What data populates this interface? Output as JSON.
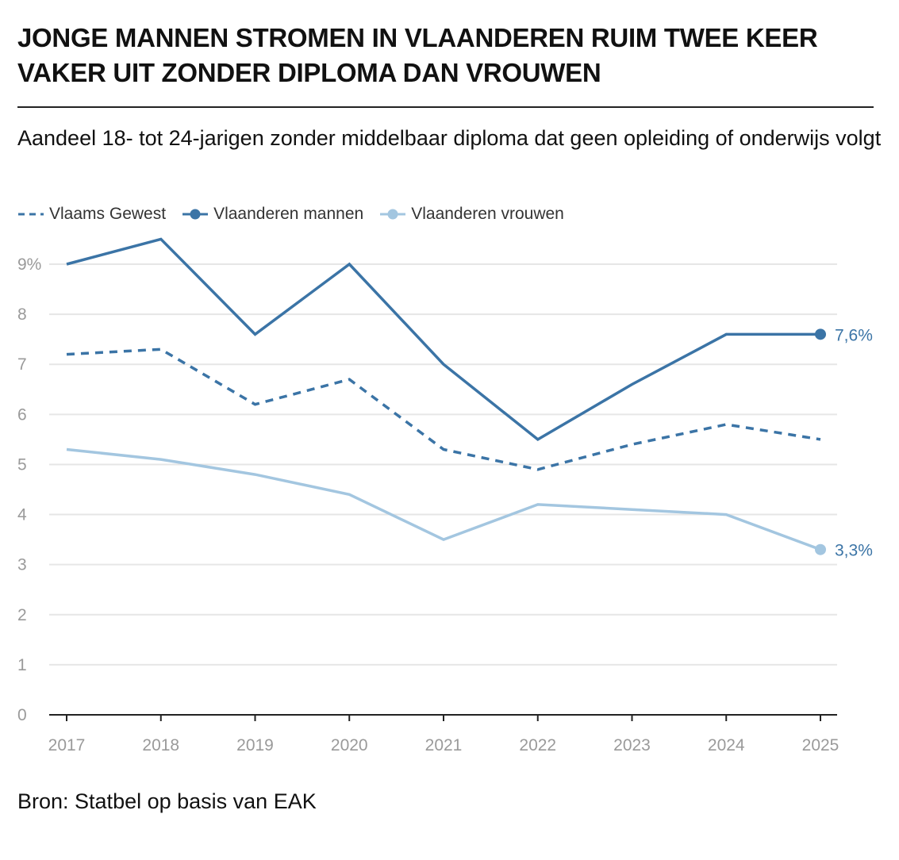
{
  "title": "JONGE MANNEN STROMEN IN VLAANDEREN RUIM TWEE KEER VAKER UIT ZONDER DIPLOMA DAN VROUWEN",
  "subtitle": "Aandeel 18- tot 24-jarigen zonder middelbaar diploma dat geen opleiding of onderwijs volgt",
  "source": "Bron: Statbel op basis van EAK",
  "chart_data": {
    "type": "line",
    "title": "JONGE MANNEN STROMEN IN VLAANDEREN RUIM TWEE KEER VAKER UIT ZONDER DIPLOMA DAN VROUWEN",
    "subtitle": "Aandeel 18- tot 24-jarigen zonder middelbaar diploma dat geen opleiding of onderwijs volgt",
    "x": [
      "2017",
      "2018",
      "2019",
      "2020",
      "2021",
      "2022",
      "2023",
      "2024",
      "2025"
    ],
    "ylim": [
      0,
      9
    ],
    "y_ticks": [
      "0",
      "1",
      "2",
      "3",
      "4",
      "5",
      "6",
      "7",
      "8",
      "9%"
    ],
    "grid": true,
    "legend_placement": "top-left",
    "series": [
      {
        "name": "Vlaams Gewest",
        "style": "dashed",
        "color": "#3b74a6",
        "values": [
          7.2,
          7.3,
          6.2,
          6.7,
          5.3,
          4.9,
          5.4,
          5.8,
          5.5
        ]
      },
      {
        "name": "Vlaanderen mannen",
        "style": "solid",
        "color": "#3b74a6",
        "values": [
          9.0,
          9.5,
          7.6,
          9.0,
          7.0,
          5.5,
          6.6,
          7.6,
          7.6
        ],
        "end_label": "7,6%"
      },
      {
        "name": "Vlaanderen vrouwen",
        "style": "solid",
        "color": "#a3c6e0",
        "values": [
          5.3,
          5.1,
          4.8,
          4.4,
          3.5,
          4.2,
          4.1,
          4.0,
          3.3
        ],
        "end_label": "3,3%"
      }
    ]
  },
  "colors": {
    "dark_blue": "#3b74a6",
    "light_blue": "#a3c6e0",
    "end_label_text": "#3b74a6",
    "grid": "#e6e6e6",
    "axis": "#222222",
    "tick_text": "#9a9a9a"
  }
}
